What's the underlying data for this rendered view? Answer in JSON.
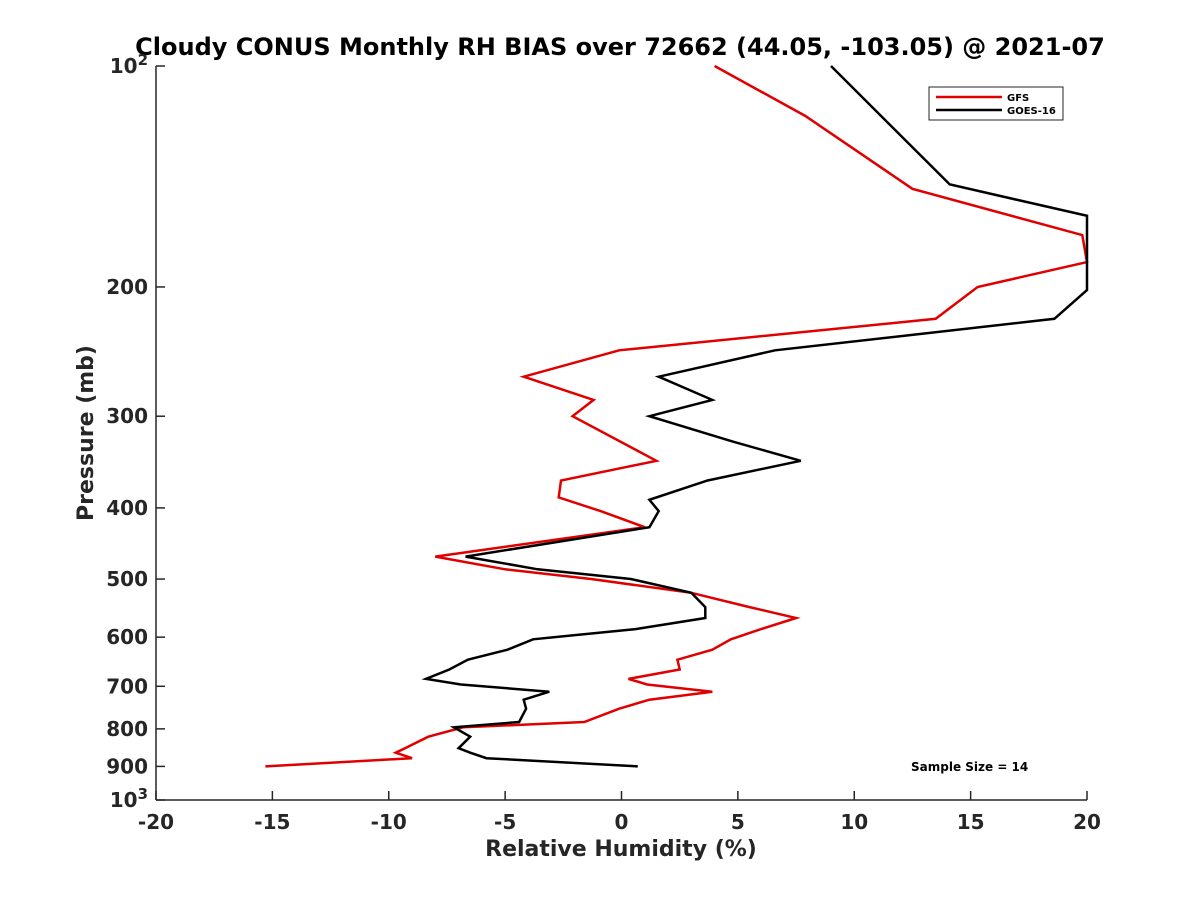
{
  "chart_data": {
    "type": "line",
    "title": "Cloudy CONUS Monthly RH BIAS over 72662 (44.05, -103.05) @ 2021-07",
    "xlabel": "Relative Humidity (%)",
    "ylabel": "Pressure (mb)",
    "xlim": [
      -20,
      20
    ],
    "ylim": [
      100,
      1000
    ],
    "y_scale": "log",
    "y_reversed": true,
    "x_ticks": [
      "-20",
      "-15",
      "-10",
      "-5",
      "0",
      "5",
      "10",
      "15",
      "20"
    ],
    "y_ticks": [
      {
        "value": 100,
        "base": "10",
        "exp": "2"
      },
      {
        "value": 200,
        "label": "200"
      },
      {
        "value": 300,
        "label": "300"
      },
      {
        "value": 400,
        "label": "400"
      },
      {
        "value": 500,
        "label": "500"
      },
      {
        "value": 600,
        "label": "600"
      },
      {
        "value": 700,
        "label": "700"
      },
      {
        "value": 800,
        "label": "800"
      },
      {
        "value": 900,
        "label": "900"
      },
      {
        "value": 1000,
        "base": "10",
        "exp": "3"
      }
    ],
    "legend_position": "top-right",
    "annotation": "Sample Size = 14",
    "series": [
      {
        "name": "GFS",
        "color": "#e00000",
        "points": [
          [
            4.0,
            100
          ],
          [
            7.9,
            117
          ],
          [
            12.5,
            147
          ],
          [
            19.8,
            170
          ],
          [
            20.0,
            185
          ],
          [
            15.3,
            200
          ],
          [
            13.5,
            221
          ],
          [
            -0.1,
            244
          ],
          [
            -4.2,
            265
          ],
          [
            -1.2,
            285
          ],
          [
            -2.1,
            300
          ],
          [
            1.5,
            345
          ],
          [
            -2.6,
            367
          ],
          [
            -2.7,
            387
          ],
          [
            -0.9,
            404
          ],
          [
            1.0,
            425
          ],
          [
            -8.0,
            466
          ],
          [
            -5.0,
            485
          ],
          [
            -1.3,
            500
          ],
          [
            3.0,
            522
          ],
          [
            5.5,
            546
          ],
          [
            7.5,
            565
          ],
          [
            6.0,
            585
          ],
          [
            4.7,
            604
          ],
          [
            3.9,
            624
          ],
          [
            2.4,
            644
          ],
          [
            2.5,
            664
          ],
          [
            0.3,
            684
          ],
          [
            1.1,
            696
          ],
          [
            3.9,
            712
          ],
          [
            1.2,
            730
          ],
          [
            -0.1,
            751
          ],
          [
            -1.6,
            783
          ],
          [
            -6.8,
            796
          ],
          [
            -8.3,
            820
          ],
          [
            -9.3,
            850
          ],
          [
            -9.7,
            862
          ],
          [
            -9.0,
            877
          ],
          [
            -15.3,
            900
          ]
        ]
      },
      {
        "name": "GOES-16",
        "color": "#000000",
        "points": [
          [
            9.0,
            100
          ],
          [
            14.1,
            145
          ],
          [
            20.0,
            160
          ],
          [
            20.0,
            202
          ],
          [
            18.6,
            221
          ],
          [
            6.6,
            244
          ],
          [
            1.6,
            265
          ],
          [
            3.9,
            285
          ],
          [
            1.2,
            300
          ],
          [
            4.8,
            325
          ],
          [
            7.7,
            345
          ],
          [
            3.7,
            367
          ],
          [
            1.2,
            390
          ],
          [
            1.6,
            404
          ],
          [
            1.2,
            425
          ],
          [
            -6.7,
            466
          ],
          [
            -3.6,
            485
          ],
          [
            0.4,
            500
          ],
          [
            3.0,
            522
          ],
          [
            3.6,
            546
          ],
          [
            3.6,
            565
          ],
          [
            0.6,
            585
          ],
          [
            -3.8,
            604
          ],
          [
            -4.9,
            624
          ],
          [
            -6.6,
            644
          ],
          [
            -7.4,
            664
          ],
          [
            -8.4,
            684
          ],
          [
            -6.9,
            696
          ],
          [
            -3.1,
            712
          ],
          [
            -4.2,
            730
          ],
          [
            -4.1,
            751
          ],
          [
            -4.4,
            783
          ],
          [
            -7.2,
            796
          ],
          [
            -6.5,
            820
          ],
          [
            -7.0,
            850
          ],
          [
            -6.5,
            862
          ],
          [
            -5.8,
            877
          ],
          [
            0.7,
            900
          ]
        ]
      }
    ]
  }
}
